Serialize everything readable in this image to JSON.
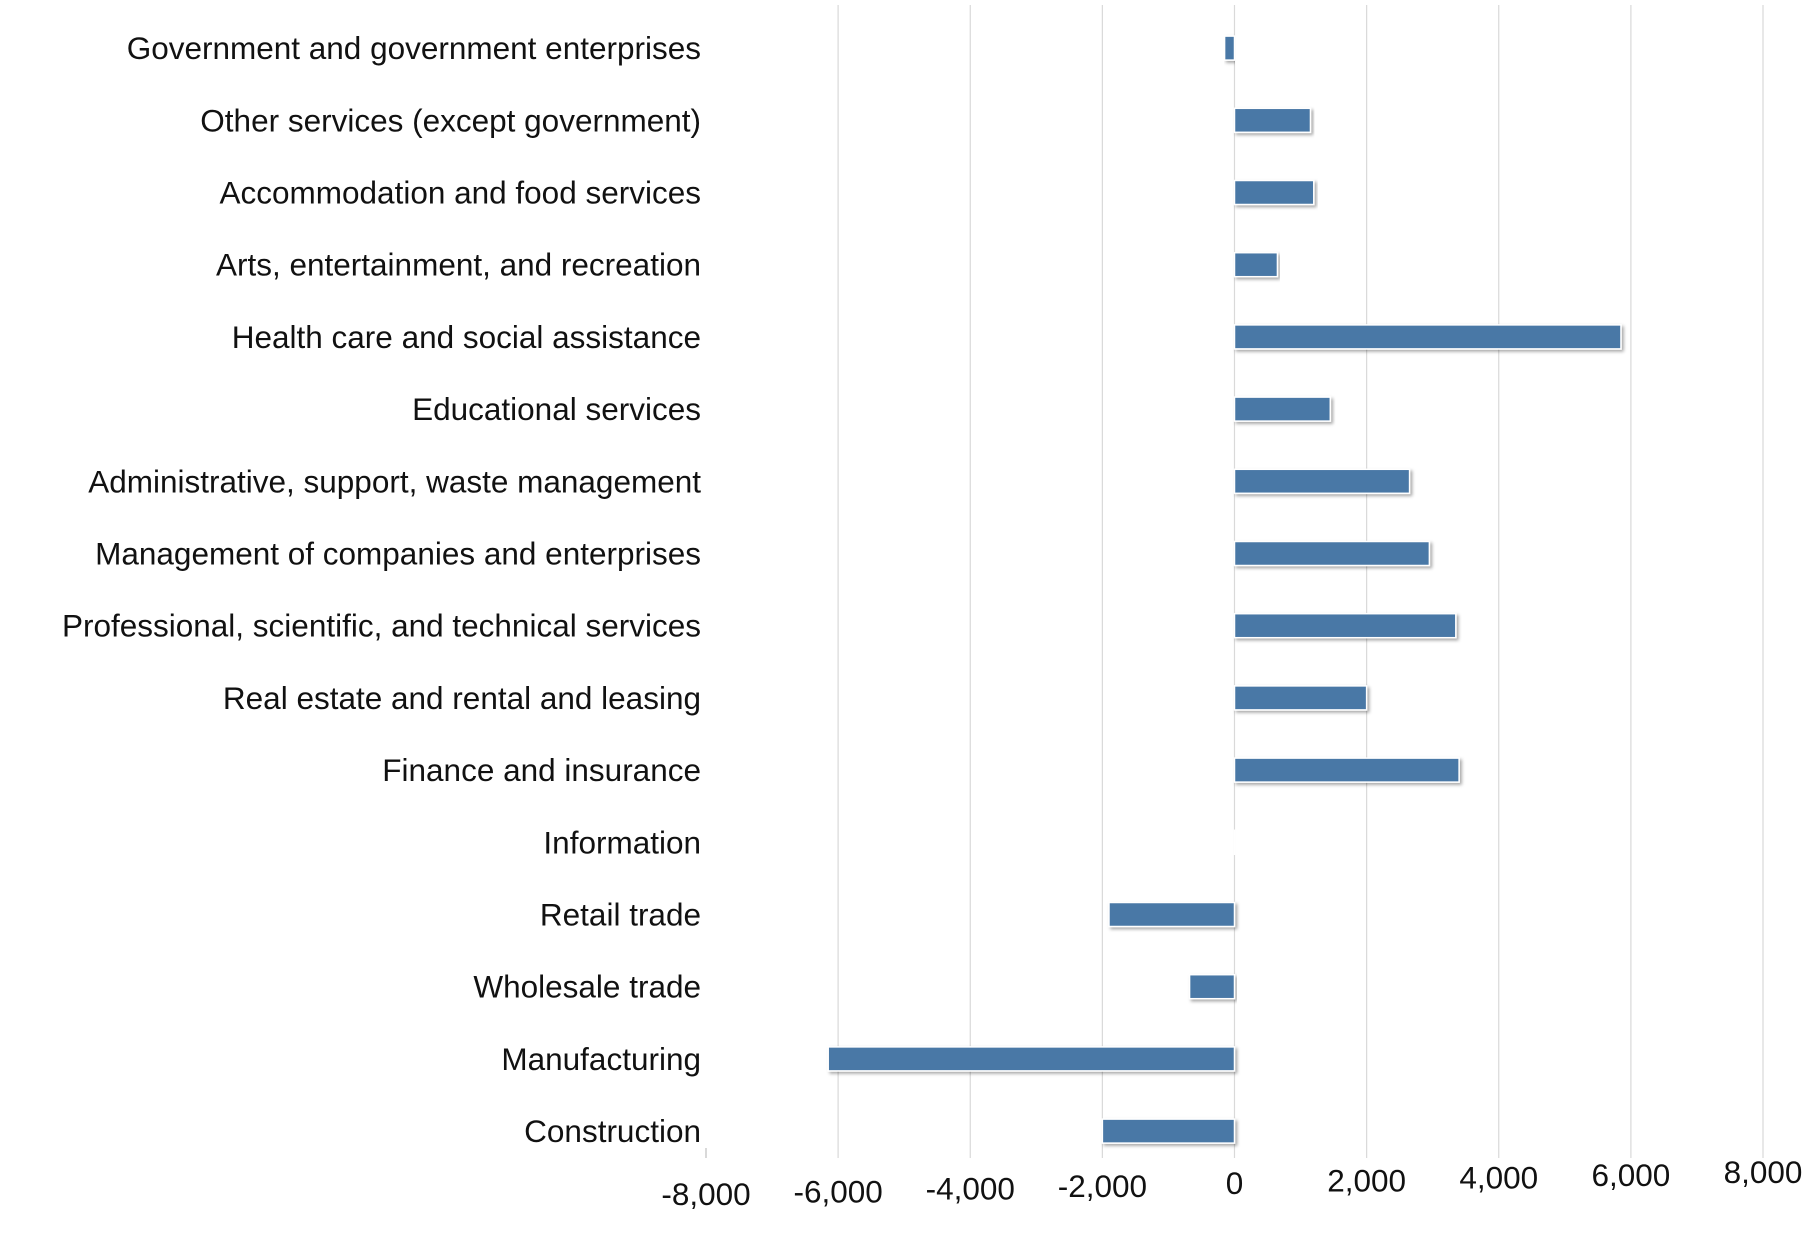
{
  "chart_data": {
    "type": "bar",
    "orientation": "horizontal",
    "title": "",
    "xlabel": "",
    "ylabel": "",
    "categories": [
      "Construction",
      "Manufacturing",
      "Wholesale trade",
      "Retail trade",
      "Information",
      "Finance and insurance",
      "Real estate and rental and leasing",
      "Professional, scientific, and technical services",
      "Management of companies and enterprises",
      "Administrative, support, waste management",
      "Educational services",
      "Health care and social assistance",
      "Arts, entertainment, and recreation",
      "Accommodation and food services",
      "Other services (except government)",
      "Government and government enterprises"
    ],
    "values": [
      -2000,
      -6150,
      -680,
      -1900,
      0,
      3400,
      2000,
      3350,
      2950,
      2650,
      1450,
      5850,
      650,
      1200,
      1150,
      -150
    ],
    "xlim": [
      -8000,
      8000
    ],
    "x_ticks": [
      -8000,
      -6000,
      -4000,
      -2000,
      0,
      2000,
      4000,
      6000,
      8000
    ],
    "x_tick_labels": [
      "-8,000",
      "-6,000",
      "-4,000",
      "-2,000",
      "0",
      "2,000",
      "4,000",
      "6,000",
      "8,000"
    ],
    "grid": "vertical",
    "legend": "none",
    "colors": {
      "bar": "#4a78a6",
      "grid": "#d9d9d9",
      "axis": "#bfbfbf",
      "text": "#111111"
    }
  }
}
